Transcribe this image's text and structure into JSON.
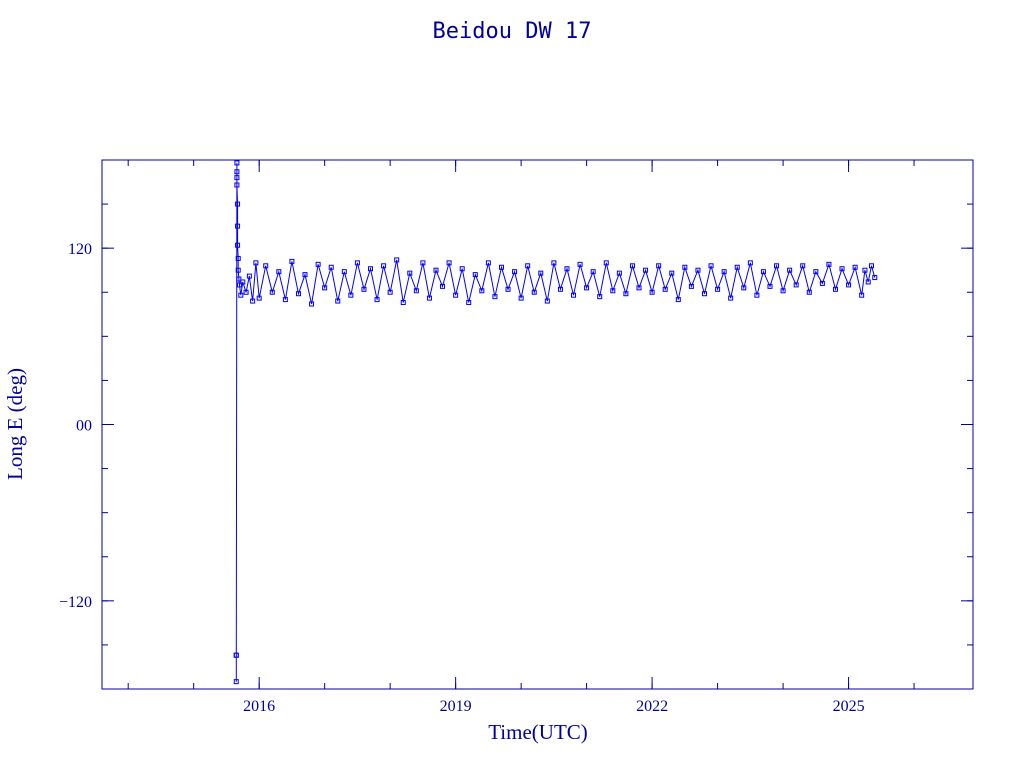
{
  "chart_data": {
    "type": "scatter",
    "title": "Beidou DW 17",
    "xlabel": "Time(UTC)",
    "ylabel": "Long E (deg)",
    "xlim": [
      2013.6,
      2026.9
    ],
    "ylim": [
      -180,
      180
    ],
    "x_ticks": [
      {
        "value": 2016,
        "label": "2016"
      },
      {
        "value": 2019,
        "label": "2019"
      },
      {
        "value": 2022,
        "label": "2022"
      },
      {
        "value": 2025,
        "label": "2025"
      }
    ],
    "x_minor_ticks": [
      2014,
      2015,
      2016,
      2017,
      2018,
      2019,
      2020,
      2021,
      2022,
      2023,
      2024,
      2025,
      2026
    ],
    "y_ticks": [
      {
        "value": 120,
        "label": "120"
      },
      {
        "value": 0,
        "label": "00"
      },
      {
        "value": -120,
        "label": "−120"
      }
    ],
    "y_minor_ticks": [
      -150,
      -120,
      -90,
      -60,
      -30,
      0,
      30,
      60,
      90,
      120,
      150
    ],
    "grid": false,
    "legend": "none",
    "color": "#0000ff",
    "series": [
      {
        "points": [
          [
            2015.65,
            -157
          ],
          [
            2015.65,
            -175
          ],
          [
            2015.65,
            -157
          ],
          [
            2015.66,
            178
          ],
          [
            2015.66,
            172
          ],
          [
            2015.66,
            168
          ],
          [
            2015.66,
            163
          ],
          [
            2015.67,
            150
          ],
          [
            2015.67,
            135
          ],
          [
            2015.67,
            122
          ],
          [
            2015.68,
            113
          ],
          [
            2015.68,
            105
          ],
          [
            2015.69,
            99
          ],
          [
            2015.7,
            95
          ],
          [
            2015.72,
            88
          ],
          [
            2015.75,
            97
          ],
          [
            2015.8,
            90
          ],
          [
            2015.85,
            101
          ],
          [
            2015.9,
            84
          ],
          [
            2015.95,
            110
          ],
          [
            2016.0,
            86
          ],
          [
            2016.1,
            108
          ],
          [
            2016.2,
            90
          ],
          [
            2016.3,
            104
          ],
          [
            2016.4,
            85
          ],
          [
            2016.5,
            111
          ],
          [
            2016.6,
            89
          ],
          [
            2016.7,
            102
          ],
          [
            2016.8,
            82
          ],
          [
            2016.9,
            109
          ],
          [
            2017.0,
            93
          ],
          [
            2017.1,
            107
          ],
          [
            2017.2,
            84
          ],
          [
            2017.3,
            104
          ],
          [
            2017.4,
            88
          ],
          [
            2017.5,
            110
          ],
          [
            2017.6,
            92
          ],
          [
            2017.7,
            106
          ],
          [
            2017.8,
            85
          ],
          [
            2017.9,
            108
          ],
          [
            2018.0,
            90
          ],
          [
            2018.1,
            112
          ],
          [
            2018.2,
            83
          ],
          [
            2018.3,
            103
          ],
          [
            2018.4,
            91
          ],
          [
            2018.5,
            110
          ],
          [
            2018.6,
            86
          ],
          [
            2018.7,
            105
          ],
          [
            2018.8,
            94
          ],
          [
            2018.9,
            110
          ],
          [
            2019.0,
            88
          ],
          [
            2019.1,
            106
          ],
          [
            2019.2,
            83
          ],
          [
            2019.3,
            102
          ],
          [
            2019.4,
            91
          ],
          [
            2019.5,
            110
          ],
          [
            2019.6,
            87
          ],
          [
            2019.7,
            107
          ],
          [
            2019.8,
            92
          ],
          [
            2019.9,
            104
          ],
          [
            2020.0,
            86
          ],
          [
            2020.1,
            108
          ],
          [
            2020.2,
            90
          ],
          [
            2020.3,
            103
          ],
          [
            2020.4,
            84
          ],
          [
            2020.5,
            110
          ],
          [
            2020.6,
            92
          ],
          [
            2020.7,
            106
          ],
          [
            2020.8,
            88
          ],
          [
            2020.9,
            109
          ],
          [
            2021.0,
            93
          ],
          [
            2021.1,
            104
          ],
          [
            2021.2,
            87
          ],
          [
            2021.3,
            110
          ],
          [
            2021.4,
            91
          ],
          [
            2021.5,
            103
          ],
          [
            2021.6,
            89
          ],
          [
            2021.7,
            108
          ],
          [
            2021.8,
            93
          ],
          [
            2021.9,
            105
          ],
          [
            2022.0,
            90
          ],
          [
            2022.1,
            108
          ],
          [
            2022.2,
            92
          ],
          [
            2022.3,
            103
          ],
          [
            2022.4,
            85
          ],
          [
            2022.5,
            107
          ],
          [
            2022.6,
            94
          ],
          [
            2022.7,
            105
          ],
          [
            2022.8,
            89
          ],
          [
            2022.9,
            108
          ],
          [
            2023.0,
            92
          ],
          [
            2023.1,
            104
          ],
          [
            2023.2,
            86
          ],
          [
            2023.3,
            107
          ],
          [
            2023.4,
            93
          ],
          [
            2023.5,
            110
          ],
          [
            2023.6,
            88
          ],
          [
            2023.7,
            104
          ],
          [
            2023.8,
            94
          ],
          [
            2023.9,
            108
          ],
          [
            2024.0,
            91
          ],
          [
            2024.1,
            105
          ],
          [
            2024.2,
            95
          ],
          [
            2024.3,
            108
          ],
          [
            2024.4,
            90
          ],
          [
            2024.5,
            104
          ],
          [
            2024.6,
            96
          ],
          [
            2024.7,
            109
          ],
          [
            2024.8,
            92
          ],
          [
            2024.9,
            106
          ],
          [
            2025.0,
            95
          ],
          [
            2025.1,
            107
          ],
          [
            2025.2,
            88
          ],
          [
            2025.25,
            105
          ],
          [
            2025.3,
            97
          ],
          [
            2025.35,
            108
          ],
          [
            2025.4,
            100
          ]
        ]
      }
    ]
  }
}
